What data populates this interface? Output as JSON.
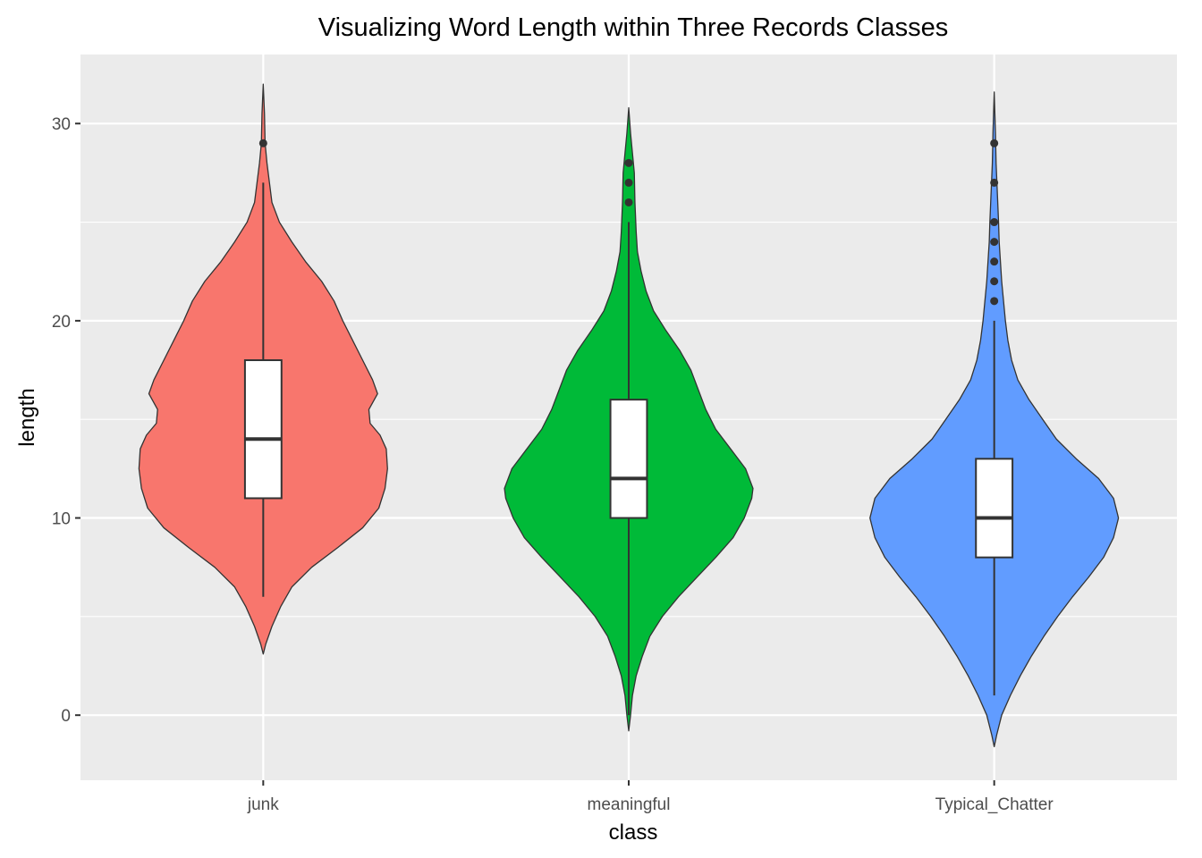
{
  "chart_data": {
    "type": "violin",
    "title": "Visualizing Word Length within Three Records Classes",
    "xlabel": "class",
    "ylabel": "length",
    "ylim": [
      -3.3,
      33.5
    ],
    "yticks": [
      0,
      10,
      20,
      30
    ],
    "grid": true,
    "legend": "none",
    "categories": [
      "junk",
      "meaningful",
      "Typical_Chatter"
    ],
    "series": [
      {
        "category": "junk",
        "color": "#F8766D",
        "density_range": [
          3.1,
          32
        ],
        "density_profile": [
          [
            3.1,
            0.0
          ],
          [
            3.6,
            0.02
          ],
          [
            4.5,
            0.07
          ],
          [
            5.5,
            0.14
          ],
          [
            6.5,
            0.23
          ],
          [
            7.5,
            0.39
          ],
          [
            8.5,
            0.6
          ],
          [
            9.5,
            0.8
          ],
          [
            10.5,
            0.93
          ],
          [
            11.5,
            0.98
          ],
          [
            12.5,
            1.0
          ],
          [
            13.5,
            0.99
          ],
          [
            14.2,
            0.94
          ],
          [
            14.8,
            0.86
          ],
          [
            15.5,
            0.85
          ],
          [
            16.3,
            0.92
          ],
          [
            17.0,
            0.88
          ],
          [
            18.0,
            0.8
          ],
          [
            19.0,
            0.72
          ],
          [
            20.0,
            0.64
          ],
          [
            21.0,
            0.57
          ],
          [
            22.0,
            0.47
          ],
          [
            23.0,
            0.34
          ],
          [
            24.0,
            0.23
          ],
          [
            25.0,
            0.13
          ],
          [
            26.0,
            0.07
          ],
          [
            27.0,
            0.05
          ],
          [
            28.0,
            0.03
          ],
          [
            29.0,
            0.015
          ],
          [
            30.5,
            0.01
          ],
          [
            32.0,
            0.0
          ]
        ],
        "box": {
          "whisker_low": 6,
          "q1": 11,
          "median": 14,
          "q3": 18,
          "whisker_high": 27
        },
        "outliers": [
          29
        ]
      },
      {
        "category": "meaningful",
        "color": "#00BA38",
        "density_range": [
          -0.8,
          30.8
        ],
        "density_profile": [
          [
            -0.8,
            0.0
          ],
          [
            0.0,
            0.015
          ],
          [
            1.0,
            0.03
          ],
          [
            2.0,
            0.06
          ],
          [
            3.0,
            0.11
          ],
          [
            4.0,
            0.17
          ],
          [
            5.0,
            0.27
          ],
          [
            6.0,
            0.4
          ],
          [
            7.0,
            0.55
          ],
          [
            8.0,
            0.7
          ],
          [
            9.0,
            0.84
          ],
          [
            10.0,
            0.93
          ],
          [
            11.0,
            0.99
          ],
          [
            11.5,
            1.0
          ],
          [
            12.5,
            0.94
          ],
          [
            13.5,
            0.82
          ],
          [
            14.5,
            0.7
          ],
          [
            15.5,
            0.62
          ],
          [
            16.5,
            0.56
          ],
          [
            17.5,
            0.5
          ],
          [
            18.5,
            0.41
          ],
          [
            19.5,
            0.3
          ],
          [
            20.5,
            0.2
          ],
          [
            21.5,
            0.14
          ],
          [
            22.5,
            0.1
          ],
          [
            23.5,
            0.07
          ],
          [
            24.5,
            0.06
          ],
          [
            26.0,
            0.05
          ],
          [
            27.5,
            0.045
          ],
          [
            28.5,
            0.03
          ],
          [
            29.5,
            0.015
          ],
          [
            30.8,
            0.0
          ]
        ],
        "box": {
          "whisker_low": 0,
          "q1": 10,
          "median": 12,
          "q3": 16,
          "whisker_high": 25
        },
        "outliers": [
          26,
          27,
          28
        ]
      },
      {
        "category": "Typical_Chatter",
        "color": "#619CFF",
        "density_range": [
          -1.6,
          31.6
        ],
        "density_profile": [
          [
            -1.6,
            0.0
          ],
          [
            -1.0,
            0.02
          ],
          [
            0.0,
            0.06
          ],
          [
            1.0,
            0.13
          ],
          [
            2.0,
            0.21
          ],
          [
            3.0,
            0.3
          ],
          [
            4.0,
            0.4
          ],
          [
            5.0,
            0.51
          ],
          [
            6.0,
            0.63
          ],
          [
            7.0,
            0.76
          ],
          [
            8.0,
            0.88
          ],
          [
            9.0,
            0.96
          ],
          [
            10.0,
            1.0
          ],
          [
            11.0,
            0.96
          ],
          [
            12.0,
            0.84
          ],
          [
            13.0,
            0.66
          ],
          [
            14.0,
            0.5
          ],
          [
            15.0,
            0.39
          ],
          [
            16.0,
            0.28
          ],
          [
            17.0,
            0.19
          ],
          [
            18.0,
            0.14
          ],
          [
            19.0,
            0.11
          ],
          [
            20.0,
            0.09
          ],
          [
            21.0,
            0.075
          ],
          [
            22.0,
            0.06
          ],
          [
            23.0,
            0.05
          ],
          [
            24.0,
            0.04
          ],
          [
            25.0,
            0.035
          ],
          [
            26.5,
            0.025
          ],
          [
            28.0,
            0.015
          ],
          [
            29.5,
            0.01
          ],
          [
            31.6,
            0.0
          ]
        ],
        "box": {
          "whisker_low": 1,
          "q1": 8,
          "median": 10,
          "q3": 13,
          "whisker_high": 20
        },
        "outliers": [
          21,
          22,
          23,
          24,
          25,
          27,
          29
        ]
      }
    ]
  }
}
